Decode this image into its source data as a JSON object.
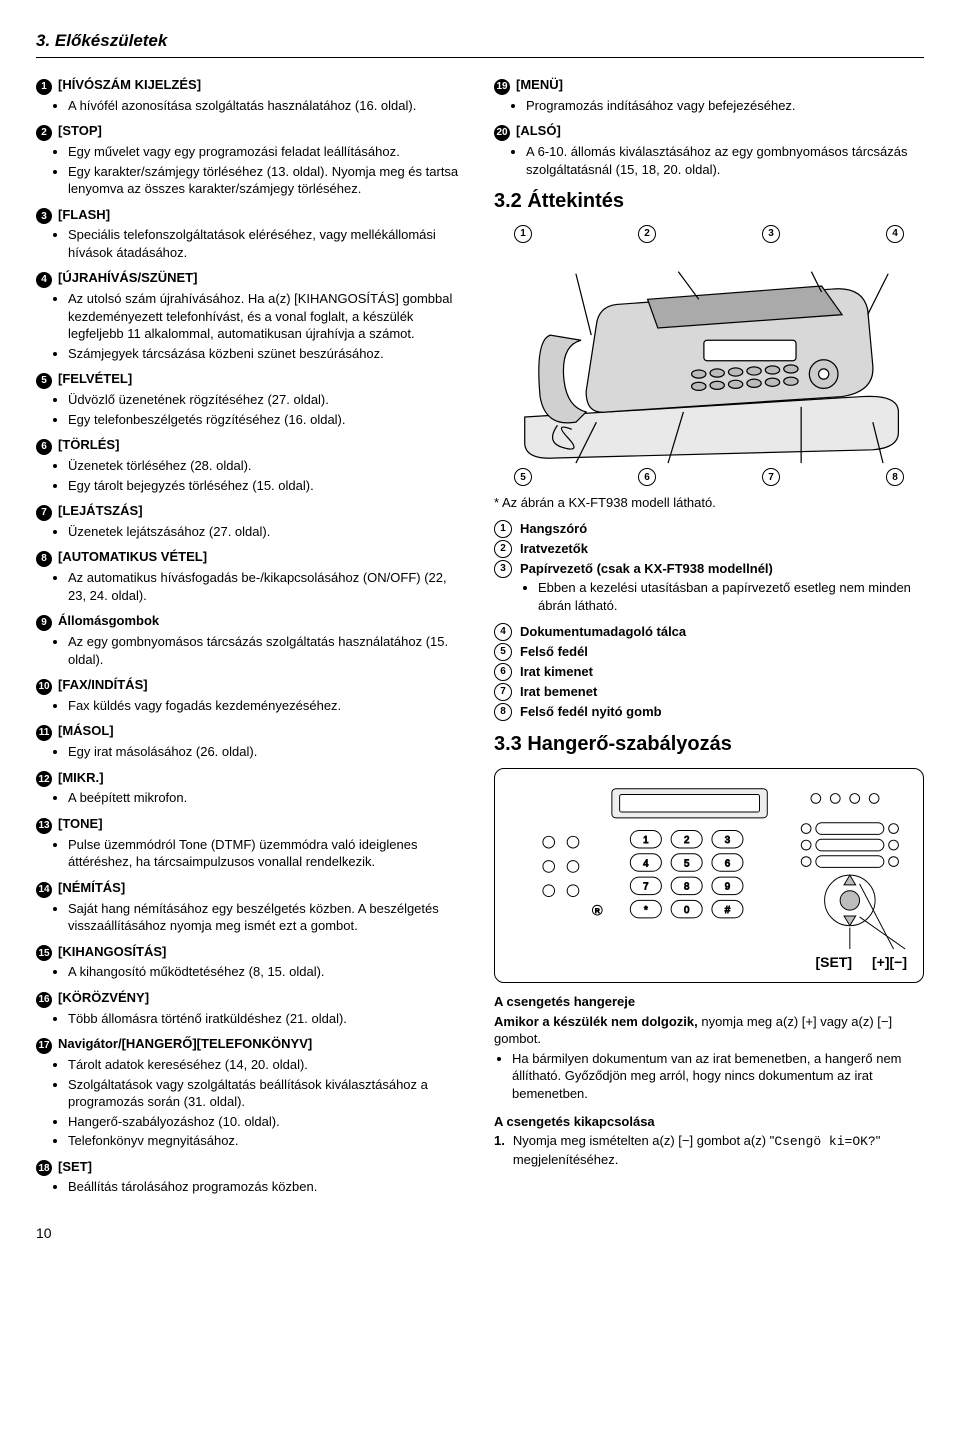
{
  "page_title": "3. Előkészületek",
  "page_number": "10",
  "left_items": [
    {
      "n": "1",
      "label": "HÍVÓSZÁM KIJELZÉS",
      "bracket": true,
      "bullets": [
        "A hívófél azonosítása szolgáltatás használatához (16. oldal)."
      ]
    },
    {
      "n": "2",
      "label": "STOP",
      "bracket": true,
      "bullets": [
        "Egy művelet vagy egy programozási feladat leállításához.",
        "Egy karakter/számjegy törléséhez (13. oldal). Nyomja meg és tartsa lenyomva az összes karakter/számjegy törléséhez."
      ]
    },
    {
      "n": "3",
      "label": "FLASH",
      "bracket": true,
      "bullets": [
        "Speciális telefonszolgáltatások eléréséhez, vagy mellékállomási hívások átadásához."
      ]
    },
    {
      "n": "4",
      "label": "ÚJRAHÍVÁS/SZÜNET",
      "bracket": true,
      "bullets": [
        "Az utolsó szám újrahívásához. Ha a(z) [KIHANGOSÍTÁS] gombbal kezdeményezett telefonhívást, és a vonal foglalt, a készülék legfeljebb 11 alkalommal, automatikusan újrahívja a számot.",
        "Számjegyek tárcsázása közbeni szünet beszúrásához."
      ]
    },
    {
      "n": "5",
      "label": "FELVÉTEL",
      "bracket": true,
      "bullets": [
        "Üdvözlő üzenetének rögzítéséhez (27. oldal).",
        "Egy telefonbeszélgetés rögzítéséhez (16. oldal)."
      ]
    },
    {
      "n": "6",
      "label": "TÖRLÉS",
      "bracket": true,
      "bullets": [
        "Üzenetek törléséhez (28. oldal).",
        "Egy tárolt bejegyzés törléséhez (15. oldal)."
      ]
    },
    {
      "n": "7",
      "label": "LEJÁTSZÁS",
      "bracket": true,
      "bullets": [
        "Üzenetek lejátszásához (27. oldal)."
      ]
    },
    {
      "n": "8",
      "label": "AUTOMATIKUS VÉTEL",
      "bracket": true,
      "bullets": [
        "Az automatikus hívásfogadás be-/kikapcsolásához (ON/OFF) (22, 23, 24. oldal)."
      ]
    },
    {
      "n": "9",
      "label": "Állomásgombok",
      "bracket": false,
      "bullets": [
        "Az egy gombnyomásos tárcsázás szolgáltatás használatához (15. oldal)."
      ]
    },
    {
      "n": "10",
      "label": "FAX/INDÍTÁS",
      "bracket": true,
      "bullets": [
        "Fax küldés vagy fogadás kezdeményezéséhez."
      ]
    },
    {
      "n": "11",
      "label": "MÁSOL",
      "bracket": true,
      "bullets": [
        "Egy irat másolásához (26. oldal)."
      ]
    },
    {
      "n": "12",
      "label": "MIKR.",
      "bracket": true,
      "bullets": [
        "A beépített mikrofon."
      ]
    },
    {
      "n": "13",
      "label": "TONE",
      "bracket": true,
      "bullets": [
        "Pulse üzemmódról Tone (DTMF) üzemmódra való ideiglenes áttéréshez, ha tárcsaimpulzusos vonallal rendelkezik."
      ]
    },
    {
      "n": "14",
      "label": "NÉMÍTÁS",
      "bracket": true,
      "bullets": [
        "Saját hang némításához egy beszélgetés közben. A beszélgetés visszaállításához nyomja meg ismét ezt a gombot."
      ]
    },
    {
      "n": "15",
      "label": "KIHANGOSÍTÁS",
      "bracket": true,
      "bullets": [
        "A kihangosító működtetéséhez (8, 15. oldal)."
      ]
    },
    {
      "n": "16",
      "label": "KÖRÖZVÉNY",
      "bracket": true,
      "bullets": [
        "Több állomásra történő iratküldéshez (21. oldal)."
      ]
    },
    {
      "n": "17",
      "label": "Navigátor/[HANGERŐ][TELEFONKÖNYV]",
      "bracket": false,
      "bullets": [
        "Tárolt adatok kereséséhez (14, 20. oldal).",
        "Szolgáltatások vagy szolgáltatás beállítások kiválasztásához a programozás során (31. oldal).",
        "Hangerő-szabályozáshoz (10. oldal).",
        "Telefonkönyv megnyitásához."
      ]
    },
    {
      "n": "18",
      "label": "SET",
      "bracket": true,
      "bullets": [
        "Beállítás tárolásához programozás közben."
      ]
    }
  ],
  "right_top_items": [
    {
      "n": "19",
      "label": "MENÜ",
      "bracket": true,
      "bullets": [
        "Programozás indításához vagy befejezéséhez."
      ]
    },
    {
      "n": "20",
      "label": "ALSÓ",
      "bracket": true,
      "bullets": [
        "A 6-10. állomás kiválasztásához az egy gombnyomásos tárcsázás szolgáltatásnál (15, 18, 20. oldal)."
      ]
    }
  ],
  "sec32_title": "3.2 Áttekintés",
  "fig1_callouts_top": [
    "1",
    "2",
    "3",
    "4"
  ],
  "fig1_callouts_bottom": [
    "5",
    "6",
    "7",
    "8"
  ],
  "fig1_footnote": "* Az ábrán a KX-FT938 modell látható.",
  "parts": [
    {
      "n": "1",
      "t": "Hangszóró",
      "bold": true
    },
    {
      "n": "2",
      "t": "Iratvezetők",
      "bold": true
    },
    {
      "n": "3",
      "t": "Papírvezető (csak a KX-FT938 modellnél)",
      "bold": true,
      "sub": "Ebben a kezelési utasításban a papírvezető esetleg nem minden ábrán látható."
    },
    {
      "n": "4",
      "t": "Dokumentumadagoló tálca",
      "bold": true
    },
    {
      "n": "5",
      "t": "Felső fedél",
      "bold": true
    },
    {
      "n": "6",
      "t": "Irat kimenet",
      "bold": true
    },
    {
      "n": "7",
      "t": "Irat bemenet",
      "bold": true
    },
    {
      "n": "8",
      "t": "Felső fedél nyitó gomb",
      "bold": true
    }
  ],
  "sec33_title": "3.3 Hangerő-szabályozás",
  "fig2_labels": {
    "set": "[SET]",
    "plus": "[+]",
    "minus": "[−]"
  },
  "ring_h": "A csengetés hangereje",
  "ring_p_pre": "Amikor a készülék nem dolgozik,",
  "ring_p_post": " nyomja meg a(z) [+] vagy a(z) [−] gombot.",
  "ring_bullet": "Ha bármilyen dokumentum van az irat bemenetben, a hangerő nem állítható. Győződjön meg arról, hogy nincs dokumentum az irat bemenetben.",
  "ring_off_h": "A csengetés kikapcsolása",
  "ring_off_step_pre": "Nyomja meg ismételten a(z) [−] gombot a(z) \"",
  "ring_off_code": "Csengö ki=OK?",
  "ring_off_step_post": "\" megjelenítéséhez.",
  "keypad_digits": [
    "1",
    "2",
    "3",
    "4",
    "5",
    "6",
    "7",
    "8",
    "9",
    "*",
    "0",
    "#"
  ]
}
